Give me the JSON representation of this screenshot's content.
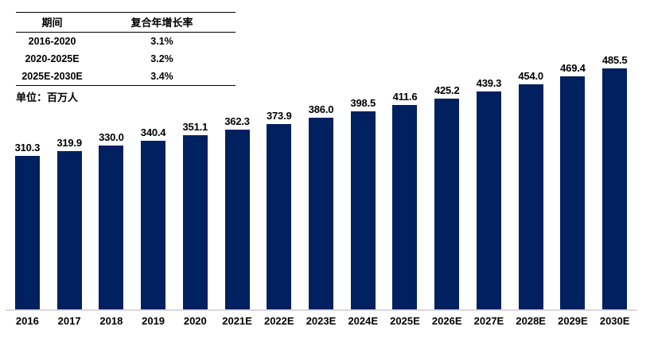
{
  "cagr_table": {
    "headers": [
      "期间",
      "复合年增长率"
    ],
    "rows": [
      {
        "period": "2016-2020",
        "cagr": "3.1%"
      },
      {
        "period": "2020-2025E",
        "cagr": "3.2%"
      },
      {
        "period": "2025E-2030E",
        "cagr": "3.4%"
      }
    ]
  },
  "unit_label": "单位：百万人",
  "chart_data": {
    "type": "bar",
    "categories": [
      "2016",
      "2017",
      "2018",
      "2019",
      "2020",
      "2021E",
      "2022E",
      "2023E",
      "2024E",
      "2025E",
      "2026E",
      "2027E",
      "2028E",
      "2029E",
      "2030E"
    ],
    "values": [
      310.3,
      319.9,
      330.0,
      340.4,
      351.1,
      362.3,
      373.9,
      386.0,
      398.5,
      411.6,
      425.2,
      439.3,
      454.0,
      469.4,
      485.5
    ],
    "value_label_format": "one_decimal",
    "title": "",
    "xlabel": "",
    "ylabel": "单位：百万人",
    "ylim": [
      0,
      624
    ],
    "grid": false,
    "legend": "none",
    "bar_color": "#002060",
    "axis_line_color": "#d9d9d9",
    "label_color": "#000000"
  }
}
